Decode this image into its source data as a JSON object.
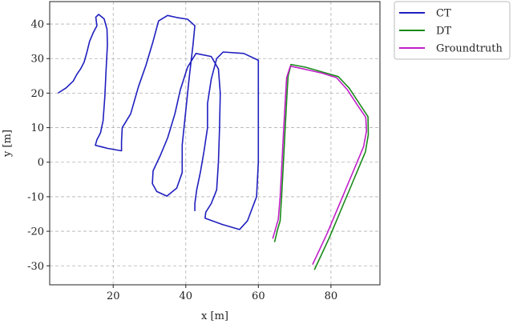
{
  "chart_data": {
    "type": "line",
    "title": "",
    "xlabel": "x [m]",
    "ylabel": "y [m]",
    "xlim": [
      2.5,
      93.5
    ],
    "ylim": [
      -35.5,
      46.5
    ],
    "xticks": [
      20,
      40,
      60,
      80
    ],
    "yticks": [
      -30,
      -20,
      -10,
      0,
      10,
      20,
      30,
      40
    ],
    "grid": true,
    "legend_position": "outside-top-right",
    "series": [
      {
        "name": "CT",
        "color": "#1f1fbf",
        "points": [
          [
            4.9,
            20.1
          ],
          [
            7,
            21.5
          ],
          [
            9,
            23.5
          ],
          [
            10,
            25.5
          ],
          [
            11,
            27
          ],
          [
            12,
            29
          ],
          [
            12.8,
            32
          ],
          [
            13.5,
            35
          ],
          [
            14.5,
            37.5
          ],
          [
            15.5,
            39.5
          ],
          [
            15.2,
            42
          ],
          [
            16,
            42.8
          ],
          [
            17.5,
            41.5
          ],
          [
            18.3,
            38.5
          ],
          [
            18.4,
            34
          ],
          [
            18,
            26
          ],
          [
            17.7,
            19
          ],
          [
            17.2,
            12
          ],
          [
            16.5,
            8.5
          ],
          [
            15.5,
            6.5
          ],
          [
            15.1,
            4.9
          ],
          [
            18.5,
            4
          ],
          [
            22.3,
            3.3
          ],
          [
            22.3,
            6
          ],
          [
            22.5,
            10
          ],
          [
            24.8,
            14
          ],
          [
            27,
            22
          ],
          [
            29,
            28
          ],
          [
            31,
            35
          ],
          [
            32.5,
            40.9
          ],
          [
            35,
            42.5
          ],
          [
            37.5,
            41.9
          ],
          [
            40.5,
            41.4
          ],
          [
            42.5,
            39.5
          ],
          [
            42,
            34
          ],
          [
            41,
            25
          ],
          [
            40,
            15
          ],
          [
            39,
            5
          ],
          [
            39,
            -3
          ],
          [
            37.5,
            -7.5
          ],
          [
            34.8,
            -9.8
          ],
          [
            32,
            -8.5
          ],
          [
            30.8,
            -6.2
          ],
          [
            31,
            -2.5
          ],
          [
            33,
            2
          ],
          [
            35,
            7
          ],
          [
            37,
            14
          ],
          [
            38.5,
            21
          ],
          [
            40.5,
            27.5
          ],
          [
            42.8,
            31.5
          ],
          [
            47,
            30.6
          ],
          [
            49,
            27
          ],
          [
            49.5,
            20
          ],
          [
            49.3,
            10
          ],
          [
            49,
            0
          ],
          [
            48.5,
            -8
          ],
          [
            47,
            -12
          ],
          [
            45.5,
            -14.5
          ],
          [
            45.3,
            -16.2
          ],
          [
            50,
            -18
          ],
          [
            54.8,
            -19.5
          ],
          [
            57,
            -17
          ],
          [
            59.5,
            -10
          ],
          [
            60,
            0
          ],
          [
            60,
            10
          ],
          [
            60,
            20
          ],
          [
            60,
            29.5
          ],
          [
            56,
            31.5
          ],
          [
            50.3,
            31.9
          ],
          [
            48.5,
            30
          ],
          [
            47,
            24
          ],
          [
            46,
            17
          ],
          [
            46,
            10
          ],
          [
            45,
            3
          ],
          [
            44,
            -3
          ],
          [
            43,
            -8
          ],
          [
            42.5,
            -12
          ],
          [
            42.5,
            -14
          ]
        ]
      },
      {
        "name": "DT",
        "color": "#1a8a1a",
        "points": [
          [
            75.5,
            -31
          ],
          [
            77.5,
            -26.5
          ],
          [
            79.5,
            -22
          ],
          [
            81.5,
            -17
          ],
          [
            83.5,
            -12
          ],
          [
            85.5,
            -7
          ],
          [
            87.5,
            -2
          ],
          [
            89.5,
            3
          ],
          [
            90.3,
            8
          ],
          [
            90.2,
            13.2
          ],
          [
            87.5,
            17.5
          ],
          [
            85,
            21.5
          ],
          [
            82,
            24.8
          ],
          [
            78,
            26
          ],
          [
            73,
            27.5
          ],
          [
            69,
            28.3
          ],
          [
            68.2,
            25
          ],
          [
            67.9,
            20
          ],
          [
            67.4,
            10
          ],
          [
            66.9,
            0
          ],
          [
            66.4,
            -10
          ],
          [
            66,
            -17
          ],
          [
            65.3,
            -19.5
          ],
          [
            64.5,
            -23
          ]
        ]
      },
      {
        "name": "Groundtruth",
        "color": "#c020c8",
        "points": [
          [
            75,
            -29.5
          ],
          [
            77,
            -25
          ],
          [
            79,
            -20.5
          ],
          [
            81,
            -15.5
          ],
          [
            83,
            -10.5
          ],
          [
            85,
            -5.5
          ],
          [
            87,
            -0.5
          ],
          [
            89,
            4.5
          ],
          [
            89.8,
            9
          ],
          [
            89.6,
            13
          ],
          [
            87,
            17
          ],
          [
            84.5,
            21
          ],
          [
            81.5,
            24.5
          ],
          [
            77.5,
            25.8
          ],
          [
            72.5,
            27
          ],
          [
            68.8,
            27.8
          ],
          [
            67.8,
            24.5
          ],
          [
            67.5,
            19.5
          ],
          [
            67,
            10
          ],
          [
            66.5,
            0
          ],
          [
            66,
            -10
          ],
          [
            65.5,
            -16.5
          ],
          [
            64.8,
            -19
          ],
          [
            64,
            -22
          ]
        ]
      }
    ]
  }
}
